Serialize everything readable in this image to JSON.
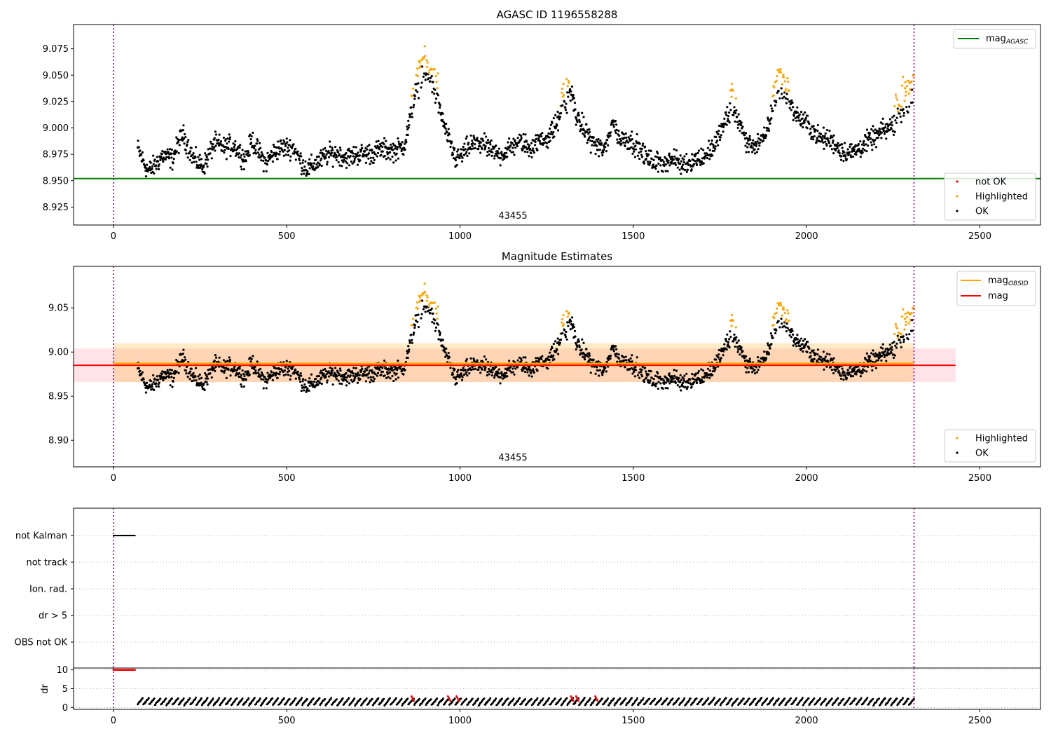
{
  "colors": {
    "ok": "#000000",
    "highlighted": "#ffa500",
    "not_ok": "#ff0000",
    "mag_agasc": "#008000",
    "mag_obsid": "#ffa500",
    "mag": "#ff0000",
    "obs_boundary": "#800080",
    "band_mag": "#ffc0cb",
    "band_obsid": "#ffa500"
  },
  "chart_data": [
    {
      "type": "scatter",
      "title": "AGASC ID 1196558288",
      "xlim": [
        -115,
        2675
      ],
      "ylim": [
        8.908,
        9.098
      ],
      "xticks": [
        0,
        500,
        1000,
        1500,
        2000,
        2500
      ],
      "yticks": [
        8.925,
        8.95,
        8.975,
        9.0,
        9.025,
        9.05,
        9.075
      ],
      "ytick_labels": [
        "8.925",
        "8.950",
        "8.975",
        "9.000",
        "9.025",
        "9.050",
        "9.075"
      ],
      "obs_label": "43455",
      "obs_boundaries": [
        0,
        2310
      ],
      "mag_agasc": 8.952,
      "legend_lines": [
        {
          "name": "mag",
          "sub": "AGASC",
          "color_key": "mag_agasc"
        }
      ],
      "legend_points": [
        {
          "name": "not OK",
          "color_key": "not_ok"
        },
        {
          "name": "Highlighted",
          "color_key": "highlighted"
        },
        {
          "name": "OK",
          "color_key": "ok"
        }
      ],
      "series": {
        "x_range": [
          70,
          2310
        ],
        "anchors": [
          [
            70,
            8.98
          ],
          [
            100,
            8.965
          ],
          [
            140,
            8.975
          ],
          [
            170,
            8.965
          ],
          [
            200,
            8.99
          ],
          [
            230,
            8.975
          ],
          [
            260,
            8.97
          ],
          [
            290,
            8.985
          ],
          [
            320,
            8.975
          ],
          [
            350,
            8.98
          ],
          [
            380,
            8.975
          ],
          [
            400,
            8.995
          ],
          [
            440,
            8.965
          ],
          [
            480,
            8.975
          ],
          [
            520,
            8.985
          ],
          [
            560,
            8.965
          ],
          [
            600,
            8.965
          ],
          [
            650,
            8.975
          ],
          [
            700,
            8.98
          ],
          [
            750,
            8.97
          ],
          [
            800,
            8.98
          ],
          [
            840,
            8.99
          ],
          [
            870,
            9.03
          ],
          [
            900,
            9.045
          ],
          [
            930,
            9.03
          ],
          [
            960,
            9.0
          ],
          [
            990,
            8.975
          ],
          [
            1050,
            8.98
          ],
          [
            1100,
            8.98
          ],
          [
            1160,
            8.985
          ],
          [
            1200,
            8.975
          ],
          [
            1260,
            9.0
          ],
          [
            1300,
            9.02
          ],
          [
            1320,
            9.03
          ],
          [
            1340,
            9.0
          ],
          [
            1380,
            8.99
          ],
          [
            1420,
            8.985
          ],
          [
            1440,
            9.01
          ],
          [
            1460,
            8.985
          ],
          [
            1520,
            8.98
          ],
          [
            1580,
            8.97
          ],
          [
            1640,
            8.96
          ],
          [
            1680,
            8.975
          ],
          [
            1740,
            8.985
          ],
          [
            1790,
            9.015
          ],
          [
            1830,
            8.99
          ],
          [
            1880,
            8.99
          ],
          [
            1920,
            9.03
          ],
          [
            1960,
            9.02
          ],
          [
            2000,
            9.01
          ],
          [
            2040,
            8.985
          ],
          [
            2100,
            8.98
          ],
          [
            2150,
            8.985
          ],
          [
            2200,
            8.985
          ],
          [
            2240,
            9.0
          ],
          [
            2270,
            9.02
          ],
          [
            2310,
            9.03
          ]
        ],
        "highlight_ranges": [
          [
            860,
            940
          ],
          [
            1290,
            1320
          ],
          [
            1780,
            1800
          ],
          [
            1900,
            1950
          ],
          [
            2250,
            2310
          ]
        ],
        "highlight_boost": 0.018
      }
    },
    {
      "type": "scatter",
      "title": "Magnitude Estimates",
      "xlim": [
        -115,
        2675
      ],
      "ylim": [
        8.87,
        9.097
      ],
      "xticks": [
        0,
        500,
        1000,
        1500,
        2000,
        2500
      ],
      "yticks": [
        8.9,
        8.95,
        9.0,
        9.05
      ],
      "ytick_labels": [
        "8.90",
        "8.95",
        "9.00",
        "9.05"
      ],
      "obs_label": "43455",
      "obs_boundaries": [
        0,
        2310
      ],
      "mag": 8.985,
      "mag_band": [
        8.966,
        9.004
      ],
      "mag_band_x": [
        -115,
        2430
      ],
      "mag_obsid": 8.987,
      "mag_obsid_band": [
        8.966,
        9.01
      ],
      "mag_obsid_band_x": [
        0,
        2310
      ],
      "legend_lines": [
        {
          "name": "mag",
          "sub": "OBSID",
          "color_key": "mag_obsid"
        },
        {
          "name": "mag",
          "sub": "",
          "color_key": "mag"
        }
      ],
      "legend_points": [
        {
          "name": "Highlighted",
          "color_key": "highlighted"
        },
        {
          "name": "OK",
          "color_key": "ok"
        }
      ]
    },
    {
      "type": "scatter",
      "flag_labels": [
        "not Kalman",
        "not track",
        "Ion. rad.",
        "dr > 5",
        "OBS not OK"
      ],
      "not_kalman_x": [
        0,
        62
      ],
      "dr_label": "dr",
      "dr_ylim": [
        -0.5,
        10.5
      ],
      "dr_yticks": [
        0,
        5,
        10
      ],
      "dr_ytick_labels": [
        "0",
        "5",
        "10"
      ],
      "xticks": [
        0,
        500,
        1000,
        1500,
        2000,
        2500
      ],
      "obs_boundaries": [
        0,
        2310
      ],
      "dr_flag_x": [
        0,
        62
      ],
      "dr_red_x": [
        860,
        965,
        990,
        1320,
        1335,
        1390
      ]
    }
  ]
}
